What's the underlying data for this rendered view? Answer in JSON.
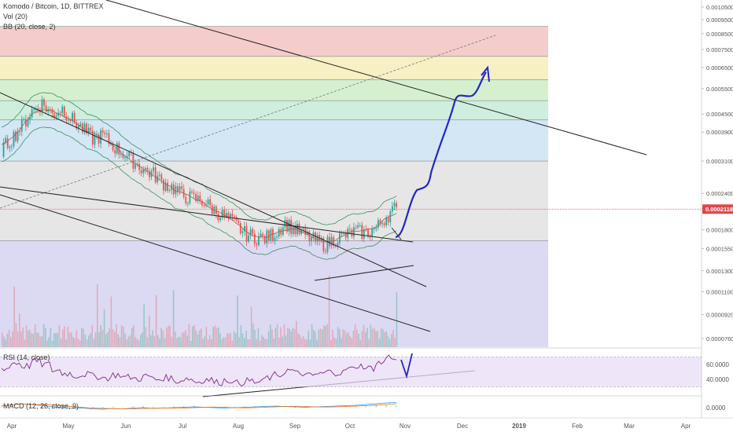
{
  "header": {
    "title": "Komodo / Bitcoin, 1D, BITTREX",
    "vol_label": "Vol (20)",
    "bb_label": "BB (20, close, 2)"
  },
  "rsi": {
    "label": "RSI (14, close)",
    "ticks": [
      {
        "value": 60,
        "label": "60.0000"
      },
      {
        "value": 40,
        "label": "40.0000"
      }
    ],
    "band_upper": 70,
    "band_lower": 30
  },
  "macd": {
    "label": "MACD (12, 26, close, 9)",
    "zero_label": "0.0000"
  },
  "chart_data": {
    "type": "line",
    "symbol": "Komodo / Bitcoin",
    "interval": "1D",
    "exchange": "BITTREX",
    "price_scale": "log",
    "ylim": [
      7.1e-05,
      0.00111
    ],
    "y_ticks": [
      {
        "value": 0.00105,
        "label": "0.00105000"
      },
      {
        "value": 0.00095,
        "label": "0.00095000"
      },
      {
        "value": 0.00085,
        "label": "0.00085000"
      },
      {
        "value": 0.00075,
        "label": "0.00075000"
      },
      {
        "value": 0.00065,
        "label": "0.00065000"
      },
      {
        "value": 0.00055,
        "label": "0.00055000"
      },
      {
        "value": 0.00045,
        "label": "0.00045000"
      },
      {
        "value": 0.00039,
        "label": "0.00039000"
      },
      {
        "value": 0.00031,
        "label": "0.00031000"
      },
      {
        "value": 0.00024,
        "label": "0.00024000"
      },
      {
        "value": 0.00018,
        "label": "0.00018000"
      },
      {
        "value": 0.000155,
        "label": "0.00015500"
      },
      {
        "value": 0.00013,
        "label": "0.00013000"
      },
      {
        "value": 0.00011,
        "label": "0.00011000"
      },
      {
        "value": 9.2e-05,
        "label": "0.00009200"
      },
      {
        "value": 7.6e-05,
        "label": "0.00007600"
      }
    ],
    "last_price": {
      "value": 0.00021188,
      "label": "0.00021188",
      "color": "#e04848"
    },
    "x_labels": [
      "Apr",
      "May",
      "Jun",
      "Jul",
      "Aug",
      "Sep",
      "Oct",
      "Nov",
      "Dec",
      "2019",
      "Feb",
      "Mar",
      "Apr"
    ],
    "price_series": [
      0.00034,
      0.00037,
      0.00041,
      0.00046,
      0.00049,
      0.00045,
      0.00047,
      0.00043,
      0.0004,
      0.00037,
      0.00038,
      0.00035,
      0.00033,
      0.00031,
      0.00029,
      0.00028,
      0.00026,
      0.00025,
      0.000235,
      0.00023,
      0.000225,
      0.00021,
      0.0002,
      0.00019,
      0.000175,
      0.00017,
      0.000168,
      0.000175,
      0.00019,
      0.00018,
      0.000172,
      0.000165,
      0.00016,
      0.000168,
      0.000172,
      0.000178,
      0.000175,
      0.000182,
      0.0002,
      0.000215
    ],
    "fib_zones": [
      {
        "from": 0.00071,
        "to": 0.0009,
        "color": "#f4cccc"
      },
      {
        "from": 0.00059,
        "to": 0.00071,
        "color": "#f6f0c4"
      },
      {
        "from": 0.0005,
        "to": 0.00059,
        "color": "#d6f0cf"
      },
      {
        "from": 0.00043,
        "to": 0.0005,
        "color": "#cfeedd"
      },
      {
        "from": 0.00031,
        "to": 0.00043,
        "color": "#d3e7f5"
      },
      {
        "from": 0.000165,
        "to": 0.00031,
        "color": "#e6e6e6"
      },
      {
        "from": 7.1e-05,
        "to": 0.000165,
        "color": "#dcd9f3"
      }
    ],
    "projection_path": [
      [
        0.00021,
        0.00021
      ],
      [
        0.0003,
        0.00031
      ],
      [
        0.00042,
        0.00058
      ],
      [
        0.0006,
        0.00069
      ]
    ],
    "rsi_series": [
      55,
      62,
      58,
      64,
      60,
      52,
      48,
      45,
      47,
      44,
      42,
      46,
      43,
      41,
      44,
      40,
      42,
      38,
      41,
      37,
      40,
      36,
      39,
      35,
      38,
      36,
      42,
      46,
      52,
      48,
      45,
      47,
      50,
      49,
      54,
      58,
      55,
      62,
      70,
      64
    ],
    "macd_series": [
      0.2,
      0.5,
      0.8,
      0.6,
      0.3,
      0.1,
      -0.2,
      -0.4,
      -0.3,
      -0.5,
      -0.6,
      -0.4,
      -0.5,
      -0.3,
      -0.2,
      -0.4,
      -0.3,
      -0.2,
      -0.1,
      0.0,
      -0.1,
      -0.2,
      -0.3,
      -0.2,
      -0.1,
      0.0,
      0.1,
      0.2,
      0.1,
      0.0,
      -0.1,
      0.0,
      0.1,
      0.2,
      0.3,
      0.4,
      0.6,
      0.8,
      1.0,
      1.1
    ],
    "colors": {
      "candle_up": "#26a69a",
      "candle_down": "#ef5350",
      "bb_line": "#3f8f5f",
      "trendline": "#222222",
      "projection": "#1f27c9",
      "rsi_line": "#7d2a8f",
      "rsi_band": "#eadcf5",
      "macd_line": "#2196f3",
      "signal_line": "#ff6d00"
    }
  }
}
